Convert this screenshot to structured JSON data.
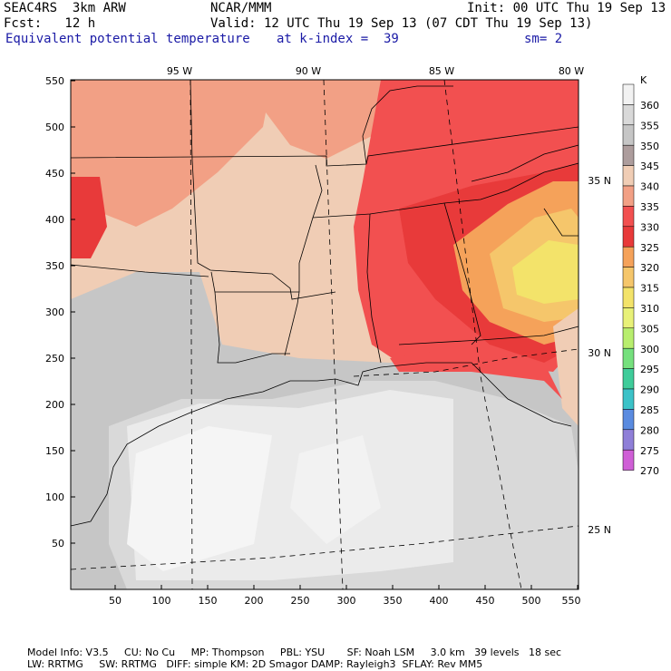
{
  "header": {
    "model": "SEAC4RS  3km ARW",
    "org": "NCAR/MMM",
    "init": "Init: 00 UTC Thu 19 Sep 13",
    "fcst": "Fcst:   12 h",
    "valid": "Valid: 12 UTC Thu 19 Sep 13 (07 CDT Thu 19 Sep 13)",
    "field": "Equivalent potential temperature",
    "level": "at k-index =  39",
    "smooth": "sm= 2"
  },
  "map": {
    "lon_labels": [
      "95 W",
      "90 W",
      "85 W",
      "80 W"
    ],
    "lat_labels": [
      "35 N",
      "30 N",
      "25 N"
    ],
    "x_ticks": [
      "50",
      "100",
      "150",
      "200",
      "250",
      "300",
      "350",
      "400",
      "450",
      "500",
      "550"
    ],
    "y_ticks": [
      "50",
      "100",
      "150",
      "200",
      "250",
      "300",
      "350",
      "400",
      "450",
      "500",
      "550"
    ]
  },
  "colorbar": {
    "unit": "K",
    "levels": [
      "360",
      "355",
      "350",
      "345",
      "340",
      "335",
      "330",
      "325",
      "320",
      "315",
      "310",
      "305",
      "300",
      "295",
      "290",
      "285",
      "280",
      "275",
      "270"
    ],
    "colors": [
      "#f2f2f2",
      "#d9d9d9",
      "#c6c6c6",
      "#ad9d9d",
      "#f0cdb5",
      "#f2a085",
      "#f25050",
      "#e83a3a",
      "#f5a25a",
      "#f5c66b",
      "#f3e36a",
      "#e8f178",
      "#b8ee6e",
      "#75e07d",
      "#3fcc9a",
      "#3cc2c8",
      "#5a8be0",
      "#8f7fd8",
      "#cf5fd6"
    ]
  },
  "footer": {
    "line1": "Model Info: V3.5     CU: No Cu     MP: Thompson     PBL: YSU       SF: Noah LSM     3.0 km   39 levels   18 sec",
    "line2": "LW: RRTMG     SW: RRTMG   DIFF: simple KM: 2D Smagor DAMP: Rayleigh3  SFLAY: Rev MM5"
  }
}
